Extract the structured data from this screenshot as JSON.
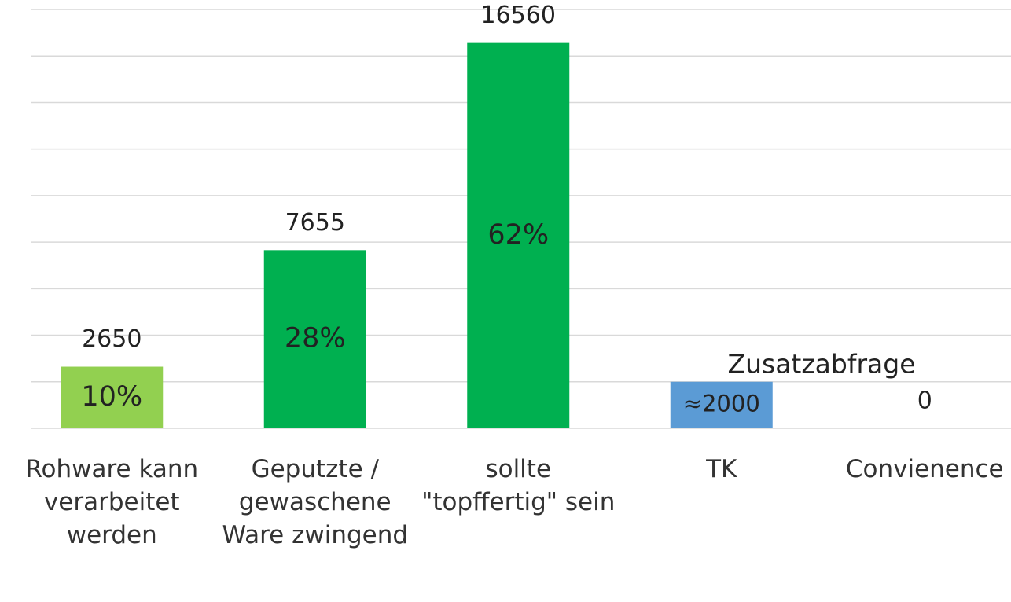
{
  "chart_data": {
    "type": "bar",
    "categories": [
      "Rohware kann verarbeitet werden",
      "Geputzte / gewaschene Ware zwingend",
      "sollte \"topffertig\" sein",
      "TK",
      "Convienence"
    ],
    "values": [
      2650,
      7655,
      16560,
      2000,
      0
    ],
    "value_labels": [
      "2650",
      "7655",
      "16560",
      "≈2000",
      "0"
    ],
    "label_position": [
      "outside",
      "outside",
      "outside",
      "inside",
      "outside"
    ],
    "shares": [
      "10%",
      "28%",
      "62%",
      null,
      null
    ],
    "colors": [
      "#92d050",
      "#00b050",
      "#00b050",
      "#5b9bd5",
      "#5b9bd5"
    ],
    "annotation": "Zusatzabfrage",
    "ylim": [
      0,
      18000
    ],
    "yticks": [
      0,
      2000,
      4000,
      6000,
      8000,
      10000,
      12000,
      14000,
      16000,
      18000
    ],
    "grid": true
  }
}
